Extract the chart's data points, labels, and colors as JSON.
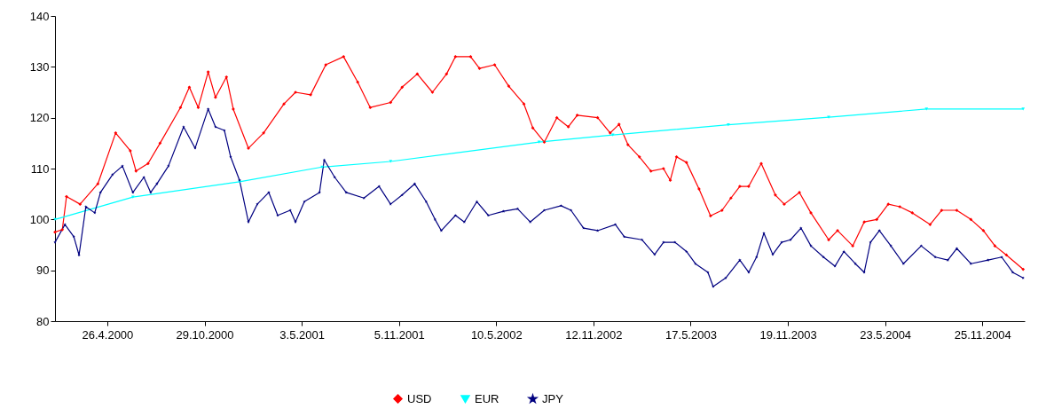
{
  "chart_data": {
    "type": "line",
    "legend": "bottom",
    "grid": false,
    "xlim": [
      "2000-01-17",
      "2005-02-14"
    ],
    "ylim": [
      80,
      140
    ],
    "yticks": [
      80,
      90,
      100,
      110,
      120,
      130,
      140
    ],
    "xticks": [
      {
        "value": "2000-04-26",
        "label": "26.4.2000"
      },
      {
        "value": "2000-10-29",
        "label": "29.10.2000"
      },
      {
        "value": "2001-05-03",
        "label": "3.5.2001"
      },
      {
        "value": "2001-11-05",
        "label": "5.11.2001"
      },
      {
        "value": "2002-05-10",
        "label": "10.5.2002"
      },
      {
        "value": "2002-11-12",
        "label": "12.11.2002"
      },
      {
        "value": "2003-05-17",
        "label": "17.5.2003"
      },
      {
        "value": "2003-11-19",
        "label": "19.11.2003"
      },
      {
        "value": "2004-05-23",
        "label": "23.5.2004"
      },
      {
        "value": "2004-11-25",
        "label": "25.11.2004"
      }
    ],
    "series": [
      {
        "name": "USD",
        "color": "#ff0000",
        "marker": "diamond",
        "x": [
          "2000-01-17",
          "2000-01-31",
          "2000-02-08",
          "2000-03-05",
          "2000-04-08",
          "2000-05-12",
          "2000-06-09",
          "2000-06-20",
          "2000-07-13",
          "2000-08-05",
          "2000-09-13",
          "2000-09-30",
          "2000-10-17",
          "2000-11-05",
          "2000-11-19",
          "2000-12-10",
          "2000-12-23",
          "2001-01-21",
          "2001-02-19",
          "2001-03-30",
          "2001-04-21",
          "2001-05-20",
          "2001-06-18",
          "2001-07-22",
          "2001-08-18",
          "2001-09-11",
          "2001-10-20",
          "2001-11-11",
          "2001-12-10",
          "2002-01-08",
          "2002-02-04",
          "2002-02-21",
          "2002-03-22",
          "2002-04-08",
          "2002-05-07",
          "2002-06-03",
          "2002-07-02",
          "2002-07-19",
          "2002-08-10",
          "2002-09-03",
          "2002-09-25",
          "2002-10-12",
          "2002-11-20",
          "2002-12-14",
          "2002-12-31",
          "2003-01-17",
          "2003-02-08",
          "2003-03-02",
          "2003-03-26",
          "2003-04-08",
          "2003-04-20",
          "2003-05-09",
          "2003-06-02",
          "2003-06-24",
          "2003-07-16",
          "2003-08-02",
          "2003-08-19",
          "2003-09-05",
          "2003-09-29",
          "2003-10-26",
          "2003-11-12",
          "2003-12-11",
          "2004-01-02",
          "2004-02-05",
          "2004-02-22",
          "2004-03-22",
          "2004-04-13",
          "2004-05-07",
          "2004-05-29",
          "2004-06-20",
          "2004-07-14",
          "2004-08-17",
          "2004-09-08",
          "2004-10-07",
          "2004-11-03",
          "2004-11-27",
          "2004-12-19",
          "2005-01-10",
          "2005-02-11"
        ],
        "values": [
          97.5,
          98,
          104.5,
          103,
          107,
          117,
          113.5,
          109.5,
          111,
          115,
          122,
          126,
          122,
          129,
          124,
          128,
          121.7,
          114,
          117,
          122.7,
          125,
          124.5,
          130.4,
          132,
          127,
          122,
          123,
          126,
          128.6,
          125,
          128.6,
          132,
          132,
          129.7,
          130.4,
          126.2,
          122.7,
          118,
          115.2,
          120,
          118.2,
          120.5,
          120,
          117,
          118.7,
          114.7,
          112.3,
          109.5,
          110,
          107.7,
          112.3,
          111.2,
          106,
          100.7,
          101.8,
          104.2,
          106.5,
          106.5,
          111,
          104.8,
          103,
          105.3,
          101.3,
          96,
          97.8,
          94.8,
          99.5,
          100,
          103,
          102.5,
          101.3,
          99,
          101.8,
          101.8,
          100,
          97.8,
          94.8,
          93,
          90.2
        ]
      },
      {
        "name": "EUR",
        "color": "#00ffff",
        "marker": "triangle",
        "x": [
          "2000-01-17",
          "2000-06-14",
          "2001-01-04",
          "2001-06-11",
          "2001-10-20",
          "2002-07-31",
          "2002-12-19",
          "2003-07-28",
          "2004-02-05",
          "2004-08-10",
          "2005-02-11"
        ],
        "values": [
          100,
          104.4,
          107.4,
          110.3,
          111.4,
          115.2,
          116.6,
          118.6,
          120.1,
          121.7,
          121.7
        ]
      },
      {
        "name": "JPY",
        "color": "#000080",
        "marker": "star",
        "x": [
          "2000-01-17",
          "2000-02-05",
          "2000-02-22",
          "2000-03-03",
          "2000-03-16",
          "2000-04-02",
          "2000-04-13",
          "2000-05-06",
          "2000-05-25",
          "2000-06-14",
          "2000-07-05",
          "2000-07-18",
          "2000-07-30",
          "2000-08-21",
          "2000-09-19",
          "2000-10-11",
          "2000-11-05",
          "2000-11-19",
          "2000-12-06",
          "2000-12-18",
          "2001-01-04",
          "2001-01-21",
          "2001-02-07",
          "2001-03-01",
          "2001-03-18",
          "2001-04-11",
          "2001-04-21",
          "2001-05-08",
          "2001-06-06",
          "2001-06-15",
          "2001-07-05",
          "2001-07-27",
          "2001-08-30",
          "2001-09-28",
          "2001-10-20",
          "2001-11-11",
          "2001-12-05",
          "2001-12-27",
          "2002-01-13",
          "2002-01-25",
          "2002-02-21",
          "2002-03-10",
          "2002-04-03",
          "2002-04-25",
          "2002-05-24",
          "2002-06-20",
          "2002-07-14",
          "2002-08-10",
          "2002-09-11",
          "2002-09-30",
          "2002-10-24",
          "2002-11-20",
          "2002-12-24",
          "2003-01-10",
          "2003-02-13",
          "2003-03-09",
          "2003-03-26",
          "2003-04-17",
          "2003-05-09",
          "2003-05-26",
          "2003-06-19",
          "2003-06-29",
          "2003-07-23",
          "2003-08-19",
          "2003-09-05",
          "2003-09-20",
          "2003-10-04",
          "2003-10-21",
          "2003-11-07",
          "2003-11-24",
          "2003-12-14",
          "2004-01-02",
          "2004-01-26",
          "2004-02-17",
          "2004-03-05",
          "2004-03-27",
          "2004-04-13",
          "2004-04-25",
          "2004-05-12",
          "2004-06-03",
          "2004-06-27",
          "2004-07-31",
          "2004-08-27",
          "2004-09-20",
          "2004-10-07",
          "2004-11-03",
          "2004-12-06",
          "2005-01-01",
          "2005-01-22",
          "2005-02-11"
        ],
        "values": [
          95.5,
          99,
          96.6,
          93,
          102.5,
          101.3,
          105.3,
          108.8,
          110.5,
          105.3,
          108.3,
          105.3,
          107,
          110.5,
          118.2,
          114,
          121.7,
          118.2,
          117.5,
          112.3,
          107.7,
          99.5,
          103,
          105.3,
          100.8,
          101.8,
          99.5,
          103.5,
          105.3,
          111.7,
          108.3,
          105.3,
          104.2,
          106.5,
          103,
          104.8,
          107,
          103.5,
          100,
          97.8,
          100.8,
          99.5,
          103.5,
          100.8,
          101.6,
          102.1,
          99.5,
          101.8,
          102.7,
          101.8,
          98.3,
          97.8,
          99,
          96.6,
          96,
          93.1,
          95.5,
          95.5,
          93.7,
          91.3,
          89.6,
          86.8,
          88.5,
          92,
          89.6,
          92.6,
          97.3,
          93.1,
          95.5,
          96,
          98.3,
          94.8,
          92.6,
          90.8,
          93.7,
          91.3,
          89.6,
          95.5,
          97.8,
          94.8,
          91.3,
          94.8,
          92.6,
          92,
          94.3,
          91.3,
          92,
          92.6,
          89.6,
          88.5
        ]
      }
    ]
  }
}
